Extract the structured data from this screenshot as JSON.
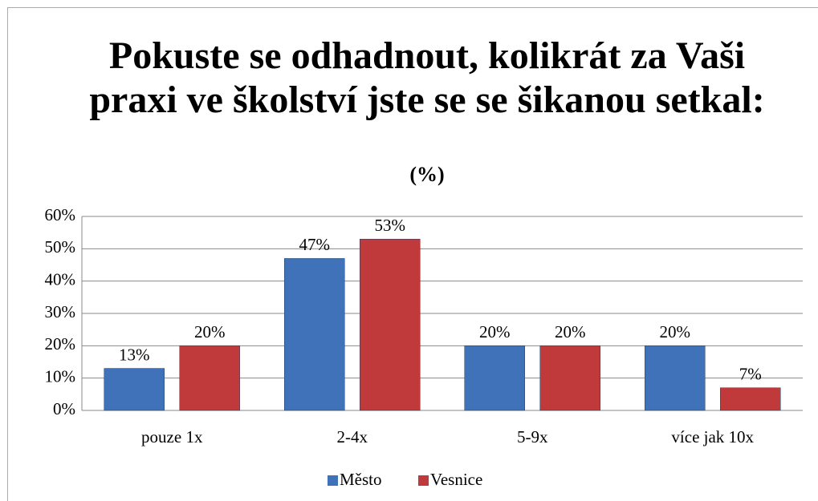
{
  "chart_data": {
    "type": "bar",
    "title": "Pokuste se odhadnout, kolikrát za Vaši praxi ve školství jste se se šikanou setkal:",
    "subtitle": "(%)",
    "categories": [
      "pouze 1x",
      "2-4x",
      "5-9x",
      "více jak 10x"
    ],
    "series": [
      {
        "name": "Město",
        "color": "#3f72b8",
        "values": [
          13,
          47,
          20,
          20
        ],
        "value_labels": [
          "13%",
          "47%",
          "20%",
          "20%"
        ]
      },
      {
        "name": "Vesnice",
        "color": "#c0393b",
        "values": [
          20,
          53,
          20,
          7
        ],
        "value_labels": [
          "20%",
          "53%",
          "20%",
          "7%"
        ]
      }
    ],
    "ylim": [
      0,
      60
    ],
    "yticks": [
      {
        "value": 0,
        "label": "0%"
      },
      {
        "value": 10,
        "label": "10%"
      },
      {
        "value": 20,
        "label": "20%"
      },
      {
        "value": 30,
        "label": "30%"
      },
      {
        "value": 40,
        "label": "40%"
      },
      {
        "value": 50,
        "label": "50%"
      },
      {
        "value": 60,
        "label": "60%"
      }
    ],
    "grid": true,
    "legend": "bottom"
  }
}
